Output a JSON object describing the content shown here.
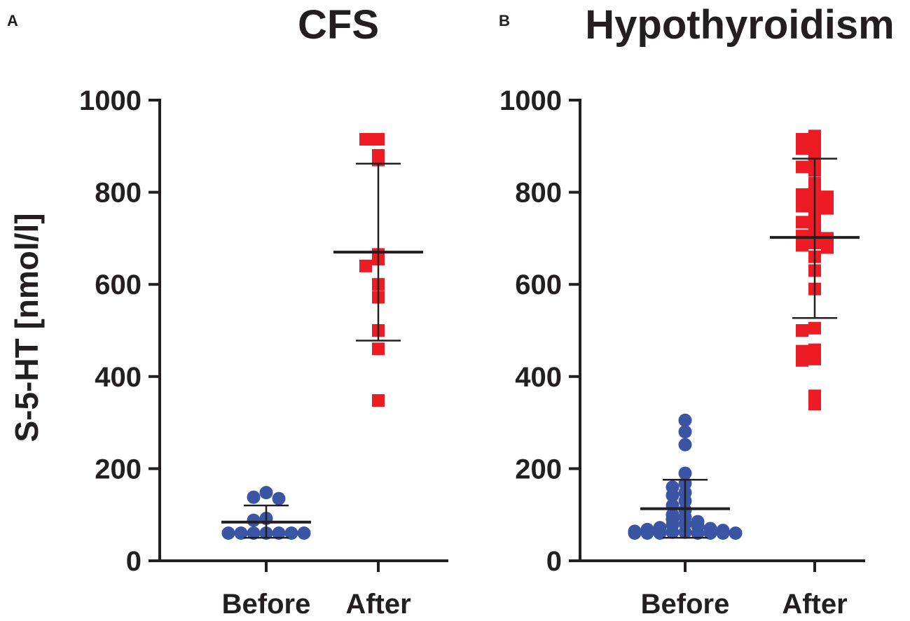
{
  "chart_data": [
    {
      "panel_label": "A",
      "title": "CFS",
      "type": "scatter",
      "ylabel": "S-5-HT [nmol/l]",
      "ylim": [
        0,
        1000
      ],
      "yticks": [
        "0",
        "200",
        "400",
        "600",
        "800",
        "1000"
      ],
      "categories": [
        "Before",
        "After"
      ],
      "series": [
        {
          "name": "Before",
          "marker": "circle",
          "color": "#3b55a5",
          "values": [
            148,
            138,
            135,
            92,
            88,
            60,
            60,
            60,
            60,
            60,
            60,
            60
          ],
          "mean": 84,
          "sd_low": 50,
          "sd_high": 120
        },
        {
          "name": "After",
          "marker": "square",
          "color": "#ed1c24",
          "values": [
            915,
            915,
            880,
            870,
            665,
            655,
            640,
            600,
            572,
            500,
            460,
            348
          ],
          "mean": 670,
          "sd_low": 478,
          "sd_high": 862
        }
      ]
    },
    {
      "panel_label": "B",
      "title": "Hypothyroidism",
      "type": "scatter",
      "ylabel": "",
      "ylim": [
        0,
        1000
      ],
      "yticks": [
        "0",
        "200",
        "400",
        "600",
        "800",
        "1000"
      ],
      "categories": [
        "Before",
        "After"
      ],
      "series": [
        {
          "name": "Before",
          "marker": "circle",
          "color": "#3b55a5",
          "values": [
            305,
            280,
            252,
            190,
            168,
            160,
            148,
            142,
            130,
            120,
            110,
            100,
            95,
            90,
            85,
            80,
            78,
            75,
            72,
            70,
            68,
            66,
            64,
            62,
            62,
            60,
            60,
            60,
            60,
            60,
            60,
            60
          ],
          "mean": 113,
          "sd_low": 50,
          "sd_high": 176
        },
        {
          "name": "After",
          "marker": "square",
          "color": "#ed1c24",
          "values": [
            922,
            915,
            905,
            895,
            880,
            870,
            855,
            848,
            820,
            815,
            800,
            795,
            790,
            780,
            770,
            765,
            760,
            740,
            735,
            720,
            710,
            705,
            700,
            690,
            685,
            680,
            660,
            630,
            590,
            505,
            500,
            458,
            455,
            438,
            435,
            358,
            340
          ],
          "mean": 702,
          "sd_low": 527,
          "sd_high": 873
        }
      ]
    }
  ]
}
